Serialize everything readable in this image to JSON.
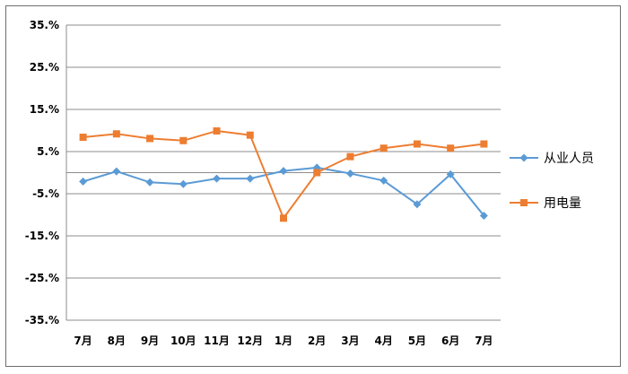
{
  "chart_data": {
    "type": "line",
    "title": "",
    "xlabel": "",
    "ylabel": "",
    "categories": [
      "7月",
      "8月",
      "9月",
      "10月",
      "11月",
      "12月",
      "1月",
      "2月",
      "3月",
      "4月",
      "5月",
      "6月",
      "7月"
    ],
    "yticks": [
      "35.%",
      "25.%",
      "15.%",
      "5.%",
      "-5.%",
      "-15.%",
      "-25.%",
      "-35.%"
    ],
    "ytick_values": [
      35,
      25,
      15,
      5,
      -5,
      -15,
      -25,
      -35
    ],
    "ylim": [
      -35,
      35
    ],
    "grid": true,
    "legend_position": "right",
    "series": [
      {
        "name": "从业人员",
        "color": "#5B9BD5",
        "marker": "diamond",
        "values": [
          -2.1,
          0.3,
          -2.3,
          -2.7,
          -1.4,
          -1.4,
          0.4,
          1.2,
          -0.2,
          -1.9,
          -7.5,
          -0.4,
          -10.2
        ]
      },
      {
        "name": "用电量",
        "color": "#ED7D31",
        "marker": "square",
        "values": [
          8.4,
          9.2,
          8.1,
          7.6,
          9.9,
          8.9,
          -10.8,
          0.0,
          3.8,
          5.8,
          6.8,
          5.8,
          6.8
        ]
      }
    ]
  }
}
